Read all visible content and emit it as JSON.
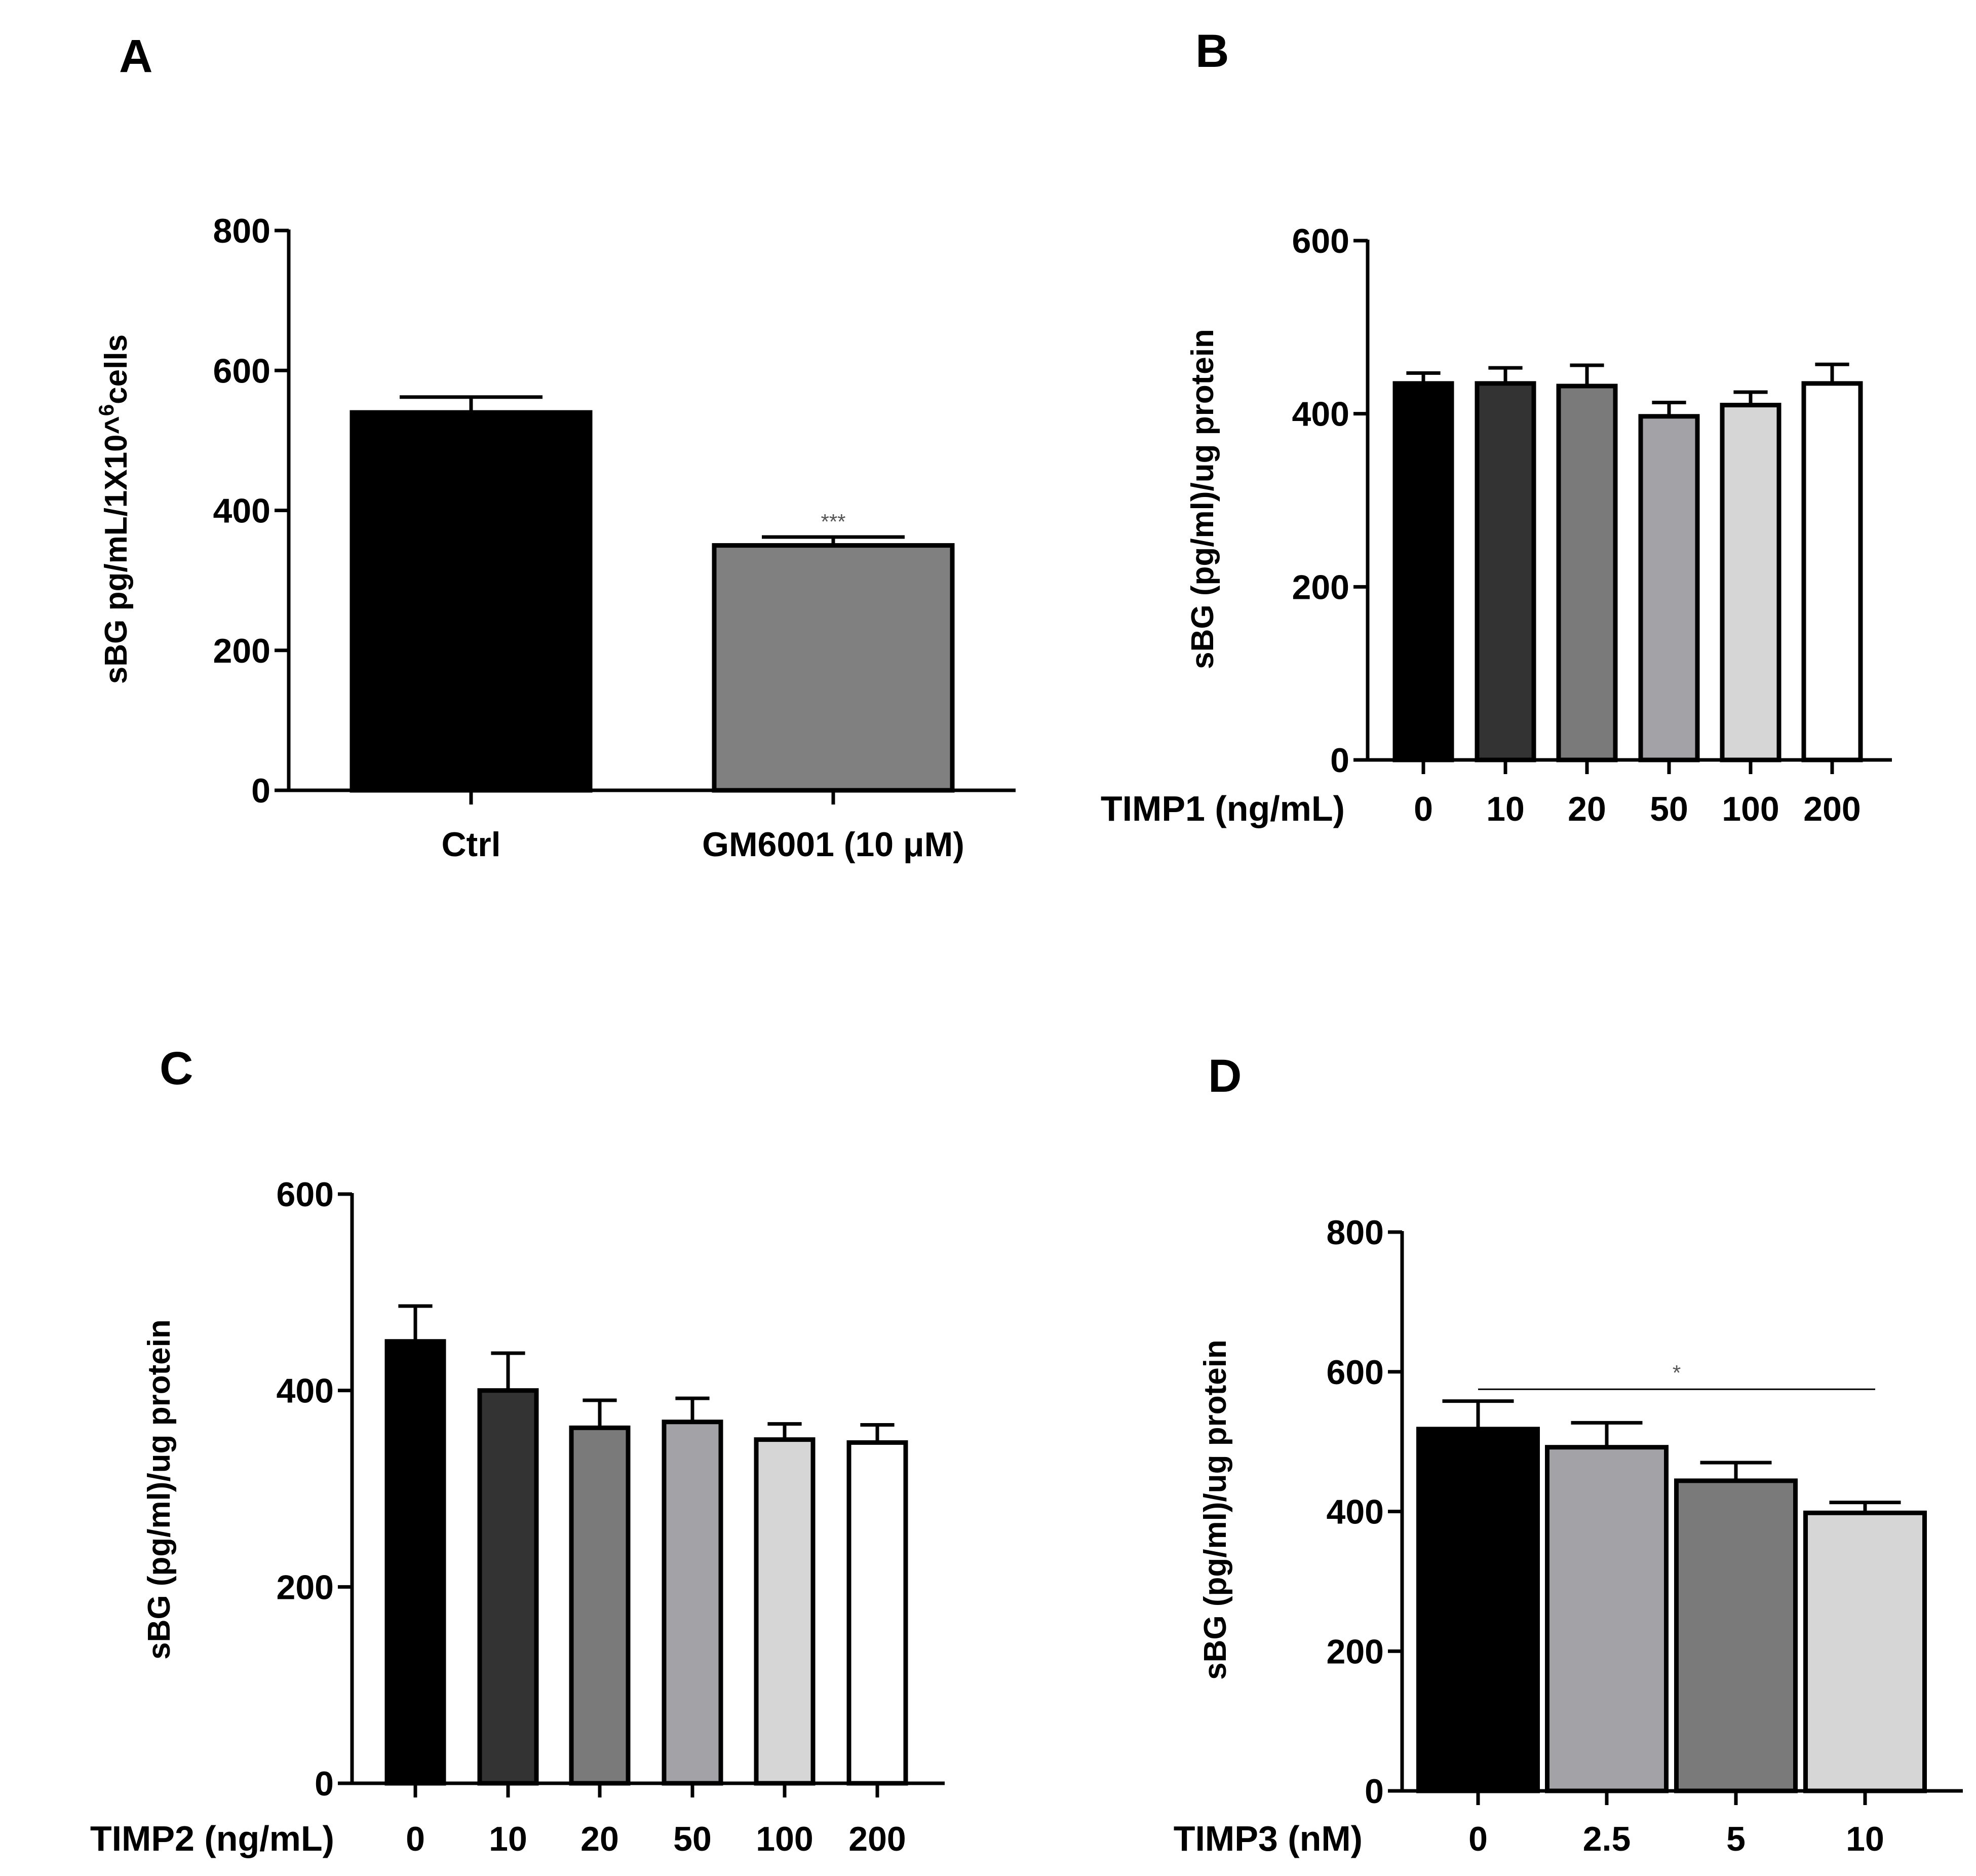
{
  "chart_data": [
    {
      "panel": "A",
      "type": "bar",
      "ylabel": "sBG pg/mL/1X10^6cells",
      "ylabel_main": "sBG pg/mL/1X10^",
      "ylabel_sup": "6",
      "ylabel_tail": "cells",
      "xlabel": "",
      "categories": [
        "Ctrl",
        "GM6001 (10 μM)"
      ],
      "values": [
        540,
        350
      ],
      "errors": [
        22,
        12
      ],
      "colors": [
        "#000000",
        "#808080"
      ],
      "ylim": [
        0,
        800
      ],
      "yticks": [
        "0",
        "200",
        "400",
        "600",
        "800"
      ],
      "annotations": [
        {
          "category": "GM6001 (10 μM)",
          "text": "***"
        }
      ]
    },
    {
      "panel": "B",
      "type": "bar",
      "ylabel": "sBG (pg/ml)/ug protein",
      "xlabel": "TIMP1 (ng/mL)",
      "categories": [
        "0",
        "10",
        "20",
        "50",
        "100",
        "200"
      ],
      "values": [
        435,
        435,
        432,
        397,
        410,
        435
      ],
      "errors": [
        12,
        18,
        24,
        16,
        15,
        22
      ],
      "colors": [
        "#000000",
        "#333333",
        "#7a7a7a",
        "#a2a2a7",
        "#d6d6d6",
        "#ffffff"
      ],
      "ylim": [
        0,
        600
      ],
      "yticks": [
        "0",
        "200",
        "400",
        "600"
      ]
    },
    {
      "panel": "C",
      "type": "bar",
      "ylabel": "sBG (pg/ml)/ug protein",
      "xlabel": "TIMP2 (ng/mL)",
      "categories": [
        "0",
        "10",
        "20",
        "50",
        "100",
        "200"
      ],
      "values": [
        450,
        400,
        362,
        368,
        350,
        347
      ],
      "errors": [
        36,
        38,
        28,
        24,
        16,
        18
      ],
      "colors": [
        "#000000",
        "#333333",
        "#7a7a7a",
        "#a2a2a7",
        "#d6d6d6",
        "#ffffff"
      ],
      "ylim": [
        0,
        600
      ],
      "yticks": [
        "0",
        "200",
        "400",
        "600"
      ]
    },
    {
      "panel": "D",
      "type": "bar",
      "ylabel": "sBG (pg/ml)/ug protein",
      "xlabel": "TIMP3 (nM)",
      "categories": [
        "0",
        "2.5",
        "5",
        "10"
      ],
      "values": [
        518,
        492,
        444,
        398
      ],
      "errors": [
        40,
        35,
        26,
        15
      ],
      "colors": [
        "#000000",
        "#a2a2a7",
        "#7a7a7a",
        "#d6d6d6"
      ],
      "ylim": [
        0,
        800
      ],
      "yticks": [
        "0",
        "200",
        "400",
        "600",
        "800"
      ],
      "annotations": [
        {
          "from": "0",
          "to": "10",
          "text": "*"
        }
      ]
    }
  ]
}
